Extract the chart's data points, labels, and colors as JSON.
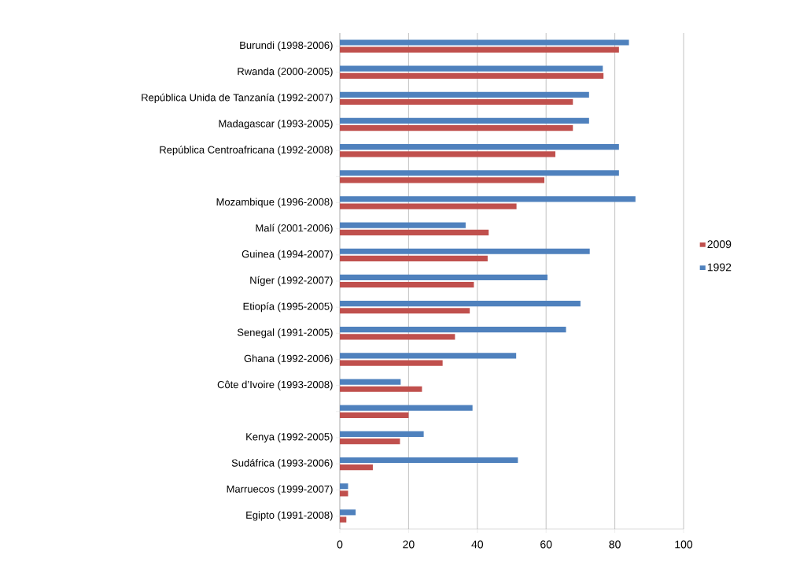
{
  "chart_data": {
    "type": "bar",
    "orientation": "horizontal",
    "categories": [
      "Burundi (1998-2006)",
      "Rwanda (2000-2005)",
      "República Unida de Tanzanía (1992-2007)",
      "Madagascar (1993-2005)",
      "República Centroafricana (1992-2008)",
      null,
      "Mozambique (1996-2008)",
      "Malí (2001-2006)",
      "Guinea (1994-2007)",
      "Níger (1992-2007)",
      "Etiopía (1995-2005)",
      "Senegal (1991-2005)",
      "Ghana (1992-2006)",
      "Côte d’Ivoire (1993-2008)",
      null,
      "Kenya (1992-2005)",
      "Sudáfrica (1993-2006)",
      "Marruecos (1999-2007)",
      "Egipto (1991-2008)"
    ],
    "series": [
      {
        "name": "2009",
        "color": "#c0504d",
        "values": [
          81.2,
          76.7,
          67.8,
          67.8,
          62.7,
          59.5,
          51.4,
          43.3,
          43.0,
          39.0,
          37.8,
          33.5,
          29.9,
          23.9,
          20.0,
          17.5,
          9.6,
          2.4,
          1.9
        ]
      },
      {
        "name": "1992",
        "color": "#4f81bd",
        "values": [
          84.1,
          76.5,
          72.5,
          72.5,
          81.2,
          81.2,
          86.0,
          36.6,
          72.7,
          60.4,
          70.0,
          65.8,
          51.3,
          17.7,
          38.6,
          24.4,
          51.8,
          2.4,
          4.6
        ]
      }
    ],
    "xlim": [
      0,
      100
    ],
    "xticks": [
      0,
      20,
      40,
      60,
      80,
      100
    ],
    "grid": "x",
    "legend": "right"
  }
}
